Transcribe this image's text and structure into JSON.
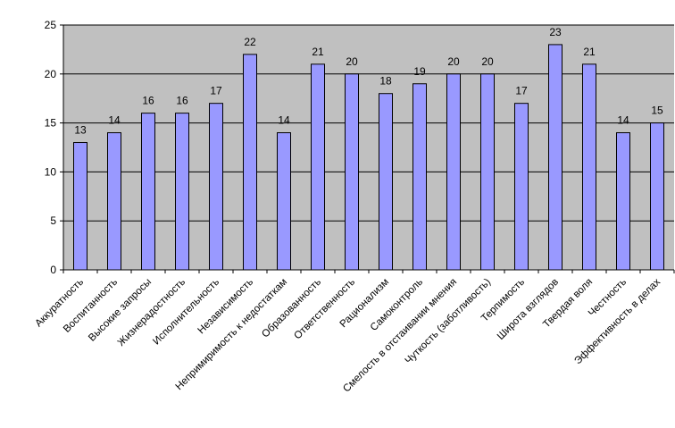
{
  "chart_data": {
    "type": "bar",
    "title": "",
    "xlabel": "",
    "ylabel": "",
    "ylim": [
      0,
      25
    ],
    "yticks": [
      "0",
      "5",
      "10",
      "15",
      "20",
      "25"
    ],
    "grid": true,
    "legend": "none",
    "categories": [
      "Аккуратность",
      "Воспитанность",
      "Высокие запросы",
      "Жизнерадостность",
      "Исполнительность",
      "Независимость",
      "Непримиримость к недостаткам",
      "Образованность",
      "Ответственность",
      "Рационализм",
      "Самоконтроль",
      "Смелость в отстаивании мнения",
      "Чуткость (заботливость)",
      "Терпимость",
      "Широта взглядов",
      "Твердая воля",
      "Честность",
      "Эффективность в делах"
    ],
    "values": [
      13,
      14,
      16,
      16,
      17,
      22,
      14,
      21,
      20,
      18,
      19,
      20,
      20,
      17,
      23,
      21,
      14,
      15
    ],
    "colors": {
      "bar_fill": "#9999ff",
      "bar_stroke": "#000000",
      "plot_background": "#c0c0c0",
      "gridline": "#000000"
    }
  }
}
